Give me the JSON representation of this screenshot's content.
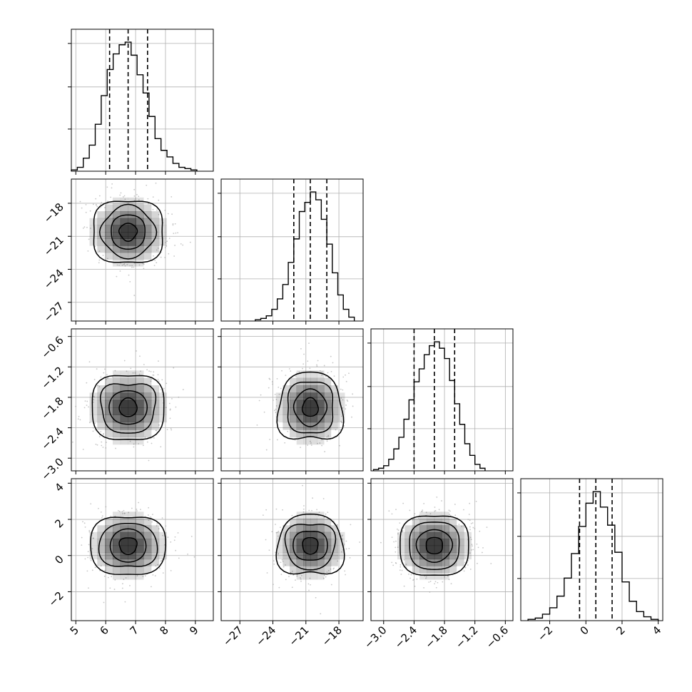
{
  "chart_data": {
    "type": "corner",
    "grid": true,
    "parameters": [
      {
        "range": [
          4.85,
          9.6
        ],
        "ticks": [
          5,
          6,
          7,
          8,
          9
        ],
        "tick_labels": [
          "5",
          "6",
          "7",
          "8",
          "9"
        ],
        "median": 6.75,
        "sigma": 0.62,
        "quantiles": [
          6.13,
          6.75,
          7.4
        ]
      },
      {
        "range": [
          -28.7,
          -15.8
        ],
        "ticks": [
          -27,
          -24,
          -21,
          -18
        ],
        "tick_labels": [
          "−27",
          "−24",
          "−21",
          "−18"
        ],
        "median": -20.6,
        "sigma": 1.5,
        "quantiles": [
          -22.1,
          -20.6,
          -19.1
        ]
      },
      {
        "range": [
          -3.25,
          -0.45
        ],
        "ticks": [
          -3.0,
          -2.4,
          -1.8,
          -1.2,
          -0.6
        ],
        "tick_labels": [
          "−3.0",
          "−2.4",
          "−1.8",
          "−1.2",
          "−0.6"
        ],
        "median": -2.0,
        "sigma": 0.35,
        "quantiles": [
          -2.4,
          -2.0,
          -1.6
        ]
      },
      {
        "range": [
          -3.6,
          4.25
        ],
        "ticks": [
          -2,
          0,
          2,
          4
        ],
        "tick_labels": [
          "−2",
          "0",
          "2",
          "4"
        ],
        "median": 0.55,
        "sigma": 0.9,
        "quantiles": [
          -0.35,
          0.55,
          1.45
        ]
      }
    ],
    "histograms": [
      {
        "param": 0,
        "bin_edges": [
          4.85,
          5.05,
          5.25,
          5.45,
          5.65,
          5.85,
          6.05,
          6.25,
          6.45,
          6.65,
          6.85,
          7.05,
          7.25,
          7.45,
          7.65,
          7.85,
          8.05,
          8.25,
          8.45,
          8.65,
          8.85,
          9.05
        ],
        "counts": [
          1,
          3,
          10,
          20,
          36,
          58,
          78,
          90,
          97,
          99,
          89,
          74,
          60,
          42,
          25,
          16,
          11,
          6,
          3,
          2,
          1
        ]
      },
      {
        "param": 1,
        "bin_edges": [
          -25.6,
          -25.1,
          -24.6,
          -24.1,
          -23.6,
          -23.1,
          -22.6,
          -22.1,
          -21.6,
          -21.1,
          -20.6,
          -20.1,
          -19.6,
          -19.1,
          -18.6,
          -18.1,
          -17.6,
          -17.1,
          -16.6
        ],
        "counts": [
          1,
          2,
          4,
          9,
          17,
          28,
          45,
          63,
          84,
          91,
          99,
          93,
          78,
          59,
          37,
          20,
          9,
          3
        ]
      },
      {
        "param": 2,
        "bin_edges": [
          -3.2,
          -3.1,
          -3.0,
          -2.9,
          -2.8,
          -2.7,
          -2.6,
          -2.5,
          -2.4,
          -2.3,
          -2.2,
          -2.1,
          -2.0,
          -1.9,
          -1.8,
          -1.7,
          -1.6,
          -1.5,
          -1.4,
          -1.3,
          -1.2,
          -1.1,
          -1.0
        ],
        "counts": [
          1,
          2,
          4,
          9,
          17,
          26,
          40,
          55,
          69,
          79,
          90,
          97,
          100,
          95,
          87,
          70,
          52,
          36,
          21,
          12,
          5,
          2
        ]
      },
      {
        "param": 3,
        "bin_edges": [
          -3.2,
          -2.8,
          -2.4,
          -2.0,
          -1.6,
          -1.2,
          -0.8,
          -0.4,
          0.0,
          0.4,
          0.8,
          1.2,
          1.6,
          2.0,
          2.4,
          2.8,
          3.2,
          3.6,
          4.0
        ],
        "counts": [
          1,
          2,
          5,
          10,
          19,
          33,
          52,
          73,
          91,
          100,
          88,
          74,
          53,
          30,
          15,
          7,
          3,
          1
        ]
      }
    ],
    "pairs": [
      {
        "x_param": 0,
        "y_param": 1
      },
      {
        "x_param": 0,
        "y_param": 2
      },
      {
        "x_param": 1,
        "y_param": 2
      },
      {
        "x_param": 0,
        "y_param": 3
      },
      {
        "x_param": 1,
        "y_param": 3
      },
      {
        "x_param": 2,
        "y_param": 3
      }
    ],
    "contour_levels_sigma": [
      0.5,
      1.0,
      1.5,
      2.0
    ],
    "colors": {
      "line": "#000000",
      "grid": "#b0b0b0",
      "points": "#999999",
      "density": "#000000"
    }
  }
}
